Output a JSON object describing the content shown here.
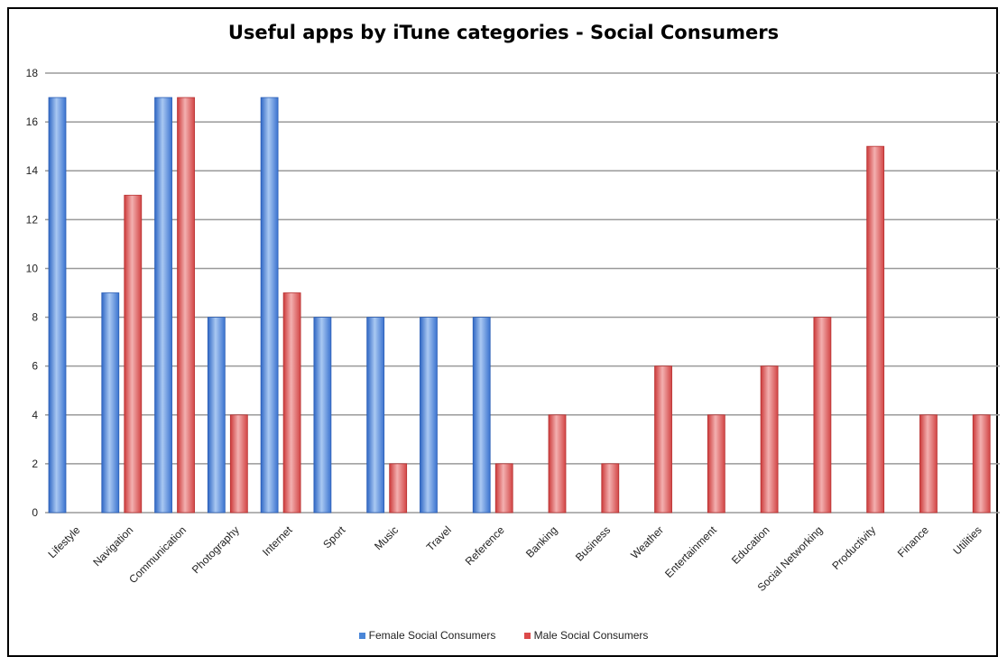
{
  "chart_data": {
    "type": "bar",
    "title": "Useful apps by iTune categories - Social Consumers",
    "xlabel": "",
    "ylabel": "",
    "ylim": [
      0,
      18
    ],
    "yticks": [
      0,
      2,
      4,
      6,
      8,
      10,
      12,
      14,
      16,
      18
    ],
    "grid": true,
    "legend_position": "bottom",
    "categories": [
      "Lifestyle",
      "Navigation",
      "Communication",
      "Photography",
      "Internet",
      "Sport",
      "Music",
      "Travel",
      "Reference",
      "Banking",
      "Business",
      "Weather",
      "Entertainment",
      "Education",
      "Social Networking",
      "Productivity",
      "Finance",
      "Utilities"
    ],
    "series": [
      {
        "name": "Female Social Consumers",
        "color": "#4a86d8",
        "values": [
          17,
          9,
          17,
          8,
          17,
          8,
          8,
          8,
          8,
          0,
          0,
          0,
          0,
          0,
          0,
          0,
          0,
          0
        ]
      },
      {
        "name": "Male Social Consumers",
        "color": "#dc4a4a",
        "values": [
          0,
          13,
          17,
          4,
          9,
          0,
          2,
          0,
          2,
          4,
          2,
          6,
          4,
          6,
          8,
          15,
          4,
          4
        ]
      }
    ]
  }
}
